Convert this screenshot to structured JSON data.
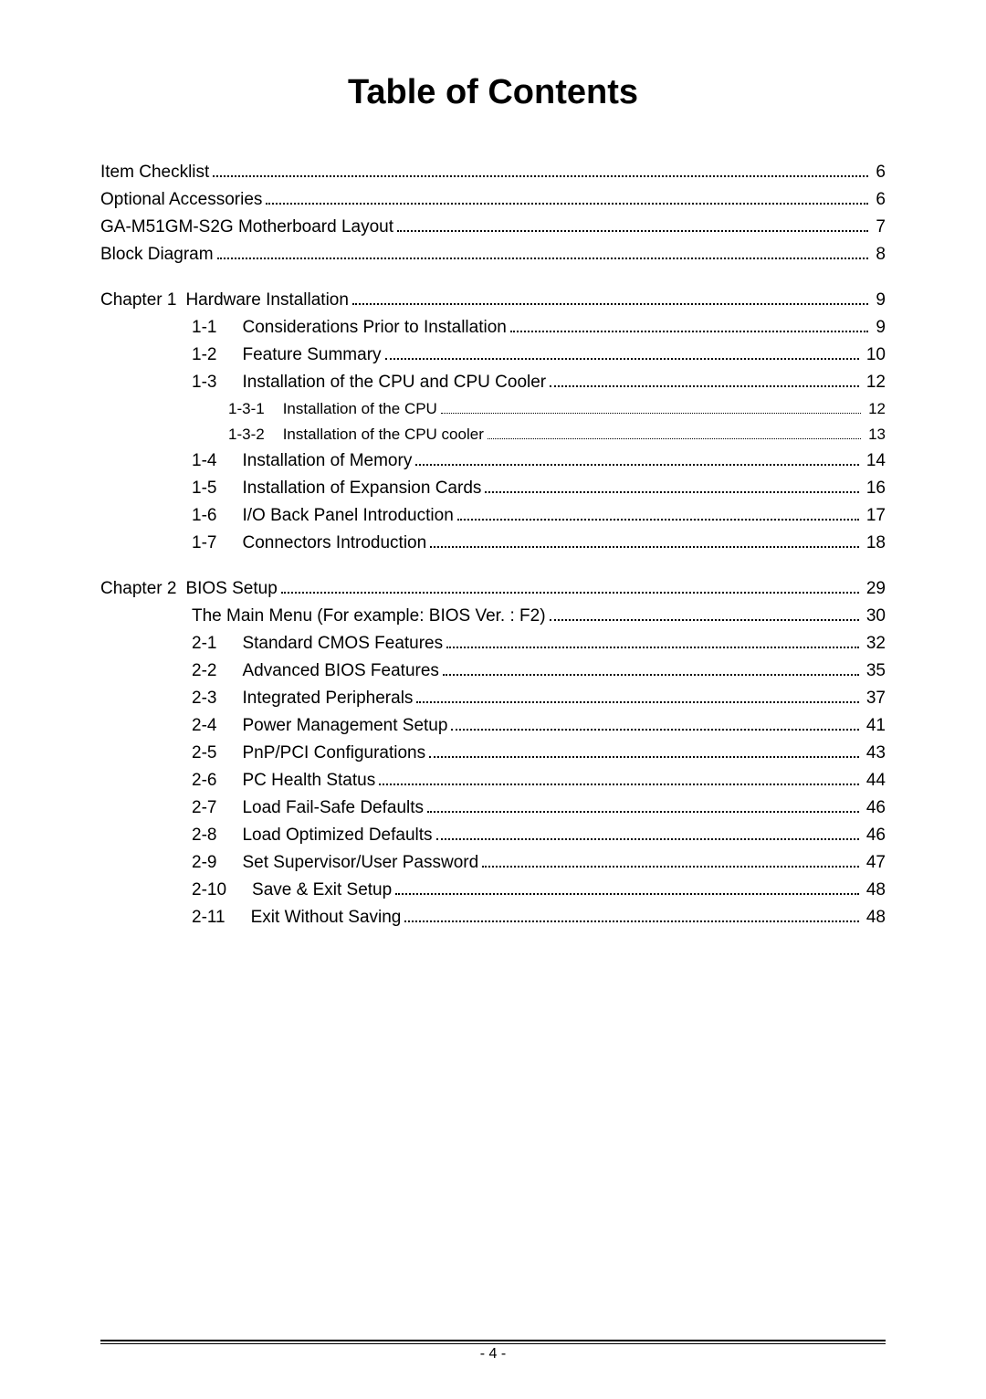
{
  "title": "Table of Contents",
  "front": [
    {
      "label": "Item Checklist",
      "page": "6"
    },
    {
      "label": "Optional Accessories",
      "page": "6"
    },
    {
      "label": "GA-M51GM-S2G Motherboard Layout",
      "page": "7"
    },
    {
      "label": "Block Diagram",
      "page": "8"
    }
  ],
  "chapter1": {
    "prefix": "Chapter 1",
    "label": "Hardware Installation",
    "page": "9",
    "items": [
      {
        "num": "1-1",
        "label": "Considerations Prior to Installation",
        "page": "9"
      },
      {
        "num": "1-2",
        "label": "Feature Summary",
        "page": "10"
      },
      {
        "num": "1-3",
        "label": "Installation of the CPU and CPU Cooler",
        "page": "12"
      },
      {
        "num": "1-3-1",
        "label": "Installation of the CPU",
        "page": "12",
        "sub": true
      },
      {
        "num": "1-3-2",
        "label": "Installation of the CPU cooler",
        "page": "13",
        "sub": true
      },
      {
        "num": "1-4",
        "label": "Installation of Memory",
        "page": "14"
      },
      {
        "num": "1-5",
        "label": "Installation of Expansion Cards",
        "page": "16"
      },
      {
        "num": "1-6",
        "label": "I/O Back Panel Introduction",
        "page": "17"
      },
      {
        "num": "1-7",
        "label": "Connectors Introduction",
        "page": "18"
      }
    ]
  },
  "chapter2": {
    "prefix": "Chapter 2",
    "label": "BIOS Setup",
    "page": "29",
    "mainmenu": {
      "label": "The Main Menu (For example: BIOS Ver. : F2)",
      "page": "30"
    },
    "items": [
      {
        "num": "2-1",
        "label": "Standard CMOS Features",
        "page": "32"
      },
      {
        "num": "2-2",
        "label": "Advanced BIOS Features",
        "page": "35"
      },
      {
        "num": "2-3",
        "label": "Integrated Peripherals",
        "page": "37"
      },
      {
        "num": "2-4",
        "label": "Power Management Setup",
        "page": "41"
      },
      {
        "num": "2-5",
        "label": "PnP/PCI Configurations",
        "page": "43"
      },
      {
        "num": "2-6",
        "label": "PC Health Status",
        "page": "44"
      },
      {
        "num": "2-7",
        "label": "Load Fail-Safe Defaults",
        "page": "46"
      },
      {
        "num": "2-8",
        "label": "Load Optimized Defaults",
        "page": "46"
      },
      {
        "num": "2-9",
        "label": "Set Supervisor/User Password",
        "page": "47"
      },
      {
        "num": "2-10",
        "label": "Save & Exit Setup",
        "page": "48"
      },
      {
        "num": "2-11",
        "label": "Exit Without Saving",
        "page": "48"
      }
    ]
  },
  "footer": "- 4 -"
}
